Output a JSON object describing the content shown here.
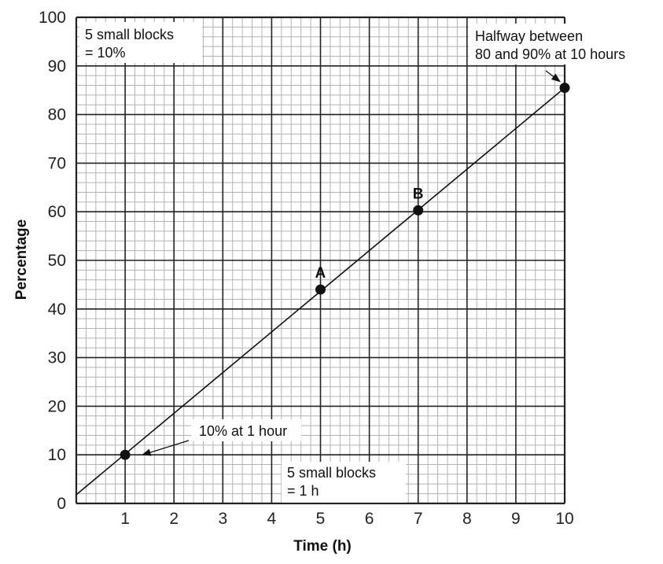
{
  "chart_data": {
    "type": "line",
    "xlabel": "Time (h)",
    "ylabel": "Percentage",
    "xlim": [
      0,
      10
    ],
    "ylim": [
      0,
      100
    ],
    "x_ticks": [
      "1",
      "2",
      "3",
      "4",
      "5",
      "6",
      "7",
      "8",
      "9",
      "10"
    ],
    "y_ticks": [
      "0",
      "10",
      "20",
      "30",
      "40",
      "50",
      "60",
      "70",
      "80",
      "90",
      "100"
    ],
    "grid": true,
    "minor_grid_per_major": 5,
    "line": {
      "x": [
        0,
        10
      ],
      "y": [
        1.8,
        85.5
      ]
    },
    "points": [
      {
        "x": 1,
        "y": 10,
        "label": ""
      },
      {
        "x": 5,
        "y": 44,
        "label": "A"
      },
      {
        "x": 7,
        "y": 60.3,
        "label": "B"
      },
      {
        "x": 10,
        "y": 85.5,
        "label": ""
      }
    ],
    "annotations": [
      {
        "name": "annotation-10-percent",
        "lines": [
          "10% at 1 hour"
        ],
        "arrow_to": {
          "x": 1,
          "y": 10
        }
      },
      {
        "name": "annotation-halfway",
        "lines": [
          "Halfway between",
          "80 and 90% at 10 hours"
        ],
        "arrow_to": {
          "x": 10,
          "y": 85.5
        }
      },
      {
        "name": "annotation-y-scale",
        "lines": [
          "5 small blocks",
          "= 10%"
        ]
      },
      {
        "name": "annotation-x-scale",
        "lines": [
          "5 small blocks",
          "= 1 h"
        ]
      }
    ],
    "colors": {
      "minor_grid": "#b3b3b3",
      "major_grid": "#222222",
      "line": "#111111"
    }
  }
}
